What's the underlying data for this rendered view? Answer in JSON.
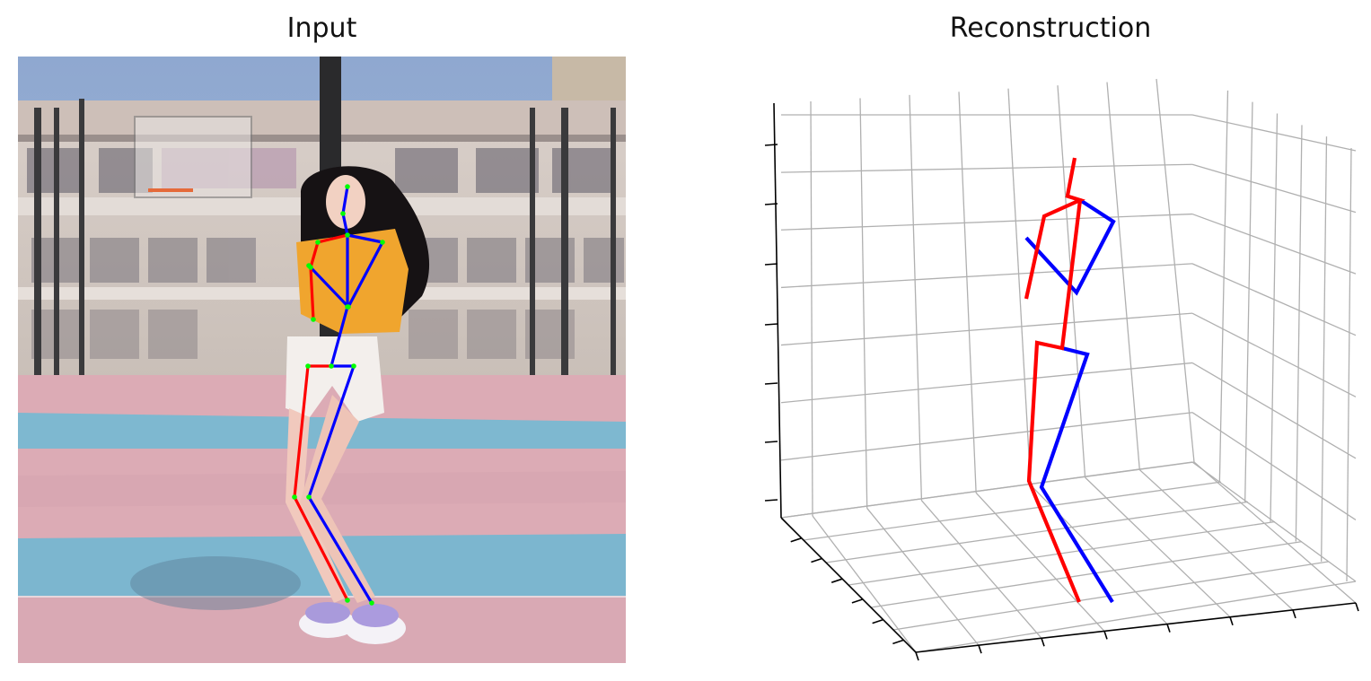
{
  "panels": {
    "input_title": "Input",
    "reconstruction_title": "Reconstruction"
  },
  "colors": {
    "right_side": "#ff0000",
    "left_side": "#0000ff",
    "keypoint": "#00ff00",
    "grid": "#b0b0b0",
    "axis": "#000000",
    "sky": "#95aed3",
    "court_pink": "#dba8b3",
    "court_blue": "#7ab7cf"
  },
  "skeleton_2d": {
    "joints": {
      "head_top": [
        387,
        208
      ],
      "head": [
        382,
        238
      ],
      "neck": [
        387,
        262
      ],
      "r_shoulder": [
        354,
        270
      ],
      "r_elbow": [
        346,
        298
      ],
      "r_wrist": [
        349,
        356
      ],
      "l_shoulder": [
        426,
        270
      ],
      "l_elbow": [
        388,
        342
      ],
      "l_wrist": [
        344,
        296
      ],
      "spine": [
        387,
        342
      ],
      "pelvis": [
        369,
        408
      ],
      "r_hip": [
        343,
        408
      ],
      "l_hip": [
        394,
        408
      ],
      "r_knee": [
        328,
        554
      ],
      "l_knee": [
        344,
        554
      ],
      "r_ankle": [
        387,
        669
      ],
      "l_ankle": [
        414,
        672
      ]
    },
    "right_bones": [
      [
        "neck",
        "r_shoulder"
      ],
      [
        "r_shoulder",
        "r_elbow"
      ],
      [
        "r_elbow",
        "r_wrist"
      ],
      [
        "pelvis",
        "r_hip"
      ],
      [
        "r_hip",
        "r_knee"
      ],
      [
        "r_knee",
        "r_ankle"
      ]
    ],
    "left_bones": [
      [
        "head_top",
        "head"
      ],
      [
        "head",
        "neck"
      ],
      [
        "neck",
        "spine"
      ],
      [
        "spine",
        "pelvis"
      ],
      [
        "neck",
        "l_shoulder"
      ],
      [
        "l_shoulder",
        "l_elbow"
      ],
      [
        "l_elbow",
        "l_wrist"
      ],
      [
        "pelvis",
        "l_hip"
      ],
      [
        "l_hip",
        "l_knee"
      ],
      [
        "l_knee",
        "l_ankle"
      ]
    ]
  },
  "skeleton_3d": {
    "right_lines": [
      [
        [
          1197,
          176
        ],
        [
          1189,
          218
        ]
      ],
      [
        [
          1187,
          218
        ],
        [
          1203,
          223
        ],
        [
          1163,
          241
        ],
        [
          1143,
          333
        ]
      ],
      [
        [
          1203,
          223
        ],
        [
          1183,
          388
        ],
        [
          1155,
          382
        ],
        [
          1146,
          536
        ],
        [
          1202,
          671
        ]
      ]
    ],
    "left_lines": [
      [
        [
          1203,
          223
        ],
        [
          1240,
          247
        ],
        [
          1199,
          326
        ],
        [
          1143,
          265
        ]
      ],
      [
        [
          1183,
          388
        ],
        [
          1211,
          395
        ],
        [
          1160,
          543
        ],
        [
          1239,
          671
        ]
      ]
    ]
  }
}
